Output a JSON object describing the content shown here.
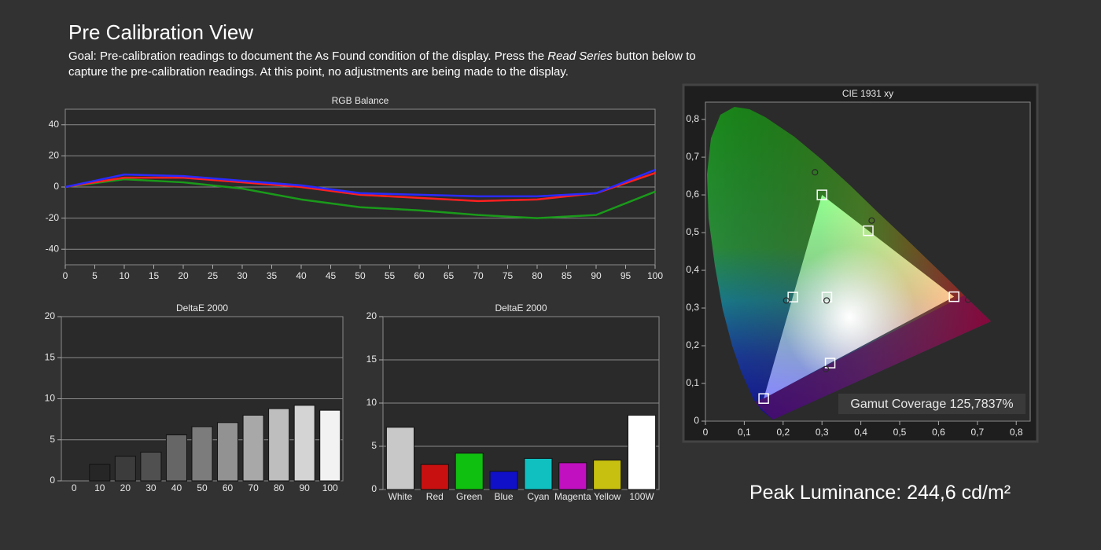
{
  "header": {
    "title": "Pre Calibration View",
    "goal": [
      "Goal: Pre-calibration readings to document the As Found condition of the display. Press the ",
      "Read Series",
      " button below to capture the pre-calibration readings. At this point, no adjustments are being made to the display."
    ],
    "peak_luminance": "Peak Luminance: 244,6 cd/m²"
  },
  "chart_data": [
    {
      "type": "line",
      "title": "RGB Balance",
      "x": [
        0,
        10,
        20,
        30,
        40,
        50,
        60,
        70,
        80,
        90,
        100
      ],
      "series": [
        {
          "color": "#1a9a1a",
          "values": [
            0,
            5,
            3,
            -1,
            -8,
            -13,
            -15,
            -18,
            -20,
            -18,
            -3
          ]
        },
        {
          "color": "#ff2020",
          "values": [
            0,
            6,
            6,
            3,
            0,
            -5,
            -7,
            -9,
            -8,
            -4,
            9
          ]
        },
        {
          "color": "#2a2aff",
          "values": [
            0,
            8,
            7,
            4,
            1,
            -4,
            -5,
            -6,
            -6,
            -4,
            11
          ]
        }
      ],
      "xlim": [
        0,
        100
      ],
      "xticks": [
        0,
        5,
        10,
        15,
        20,
        25,
        30,
        35,
        40,
        45,
        50,
        55,
        60,
        65,
        70,
        75,
        80,
        85,
        90,
        95,
        100
      ],
      "ylim": [
        -50,
        50
      ],
      "yticks": [
        -40,
        -20,
        0,
        20,
        40
      ],
      "grid": true
    },
    {
      "type": "bar",
      "title": "DeltaE 2000",
      "categories": [
        "0",
        "10",
        "20",
        "30",
        "40",
        "50",
        "60",
        "70",
        "80",
        "90",
        "100"
      ],
      "values": [
        0,
        2,
        3,
        3.5,
        5.6,
        6.6,
        7.1,
        8,
        8.8,
        9.2,
        8.6
      ],
      "colors": [
        "#101010",
        "#262626",
        "#3c3c3c",
        "#505050",
        "#666666",
        "#7c7c7c",
        "#929292",
        "#a8a8a8",
        "#bebebe",
        "#d4d4d4",
        "#f2f2f2"
      ],
      "ylim": [
        0,
        20
      ],
      "yticks": [
        0,
        5,
        10,
        15,
        20
      ],
      "grid": true
    },
    {
      "type": "bar",
      "title": "DeltaE 2000",
      "categories": [
        "White",
        "Red",
        "Green",
        "Blue",
        "Cyan",
        "Magenta",
        "Yellow",
        "100W"
      ],
      "values": [
        7.2,
        2.9,
        4.2,
        2.1,
        3.6,
        3.1,
        3.4,
        8.6
      ],
      "colors": [
        "#c8c8c8",
        "#c81010",
        "#10c010",
        "#1010c8",
        "#10c0c0",
        "#c010c0",
        "#c8c010",
        "#ffffff"
      ],
      "ylim": [
        0,
        20
      ],
      "yticks": [
        0,
        5,
        10,
        15,
        20
      ],
      "grid": true
    },
    {
      "type": "scatter",
      "title": "CIE 1931 xy",
      "series": [
        {
          "marker": "square",
          "color": "#ffffff",
          "x": [
            0.64,
            0.3,
            0.15,
            0.3127,
            0.225,
            0.321,
            0.419
          ],
          "y": [
            0.33,
            0.6,
            0.06,
            0.329,
            0.329,
            0.154,
            0.505
          ]
        },
        {
          "marker": "circle",
          "color": "#2a2a2a",
          "x": [
            0.676,
            0.282,
            0.208,
            0.312,
            0.31,
            0.428
          ],
          "y": [
            0.322,
            0.66,
            0.32,
            0.32,
            0.138,
            0.532
          ]
        }
      ],
      "annotation": "Gamut Coverage 125,7837%",
      "xlim": [
        0,
        0.836
      ],
      "xticks": [
        0,
        {
          "value": 0.1,
          "label": "0,1"
        },
        {
          "value": 0.2,
          "label": "0,2"
        },
        {
          "value": 0.3,
          "label": "0,3"
        },
        {
          "value": 0.4,
          "label": "0,4"
        },
        {
          "value": 0.5,
          "label": "0,5"
        },
        {
          "value": 0.6,
          "label": "0,6"
        },
        {
          "value": 0.7,
          "label": "0,7"
        },
        {
          "value": 0.8,
          "label": "0,8"
        }
      ],
      "ylim": [
        0,
        0.846
      ],
      "yticks": [
        0,
        {
          "value": 0.1,
          "label": "0,1"
        },
        {
          "value": 0.2,
          "label": "0,2"
        },
        {
          "value": 0.3,
          "label": "0,3"
        },
        {
          "value": 0.4,
          "label": "0,4"
        },
        {
          "value": 0.5,
          "label": "0,5"
        },
        {
          "value": 0.6,
          "label": "0,6"
        },
        {
          "value": 0.7,
          "label": "0,7"
        },
        {
          "value": 0.8,
          "label": "0,8"
        }
      ],
      "grid": false
    }
  ]
}
